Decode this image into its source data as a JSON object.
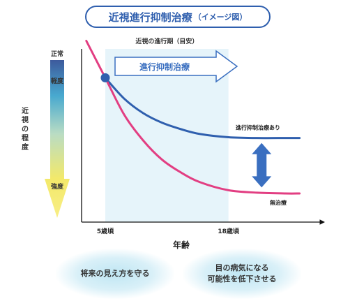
{
  "title": {
    "main": "近視進行抑制治療",
    "sub": "（イメージ図）"
  },
  "chart_data": {
    "type": "line",
    "title": "近視の進行期（目安）",
    "xlabel": "年齢",
    "ylabel": "近視の程度",
    "x_ticks": [
      {
        "label": "5歳頃",
        "value": 5
      },
      {
        "label": "18歳頃",
        "value": 18
      }
    ],
    "xlim": [
      2.5,
      27
    ],
    "ylim": [
      0,
      1
    ],
    "shaded_range": [
      5,
      18
    ],
    "shaded_label": "近視の進行期（目安）",
    "severity_scale": {
      "top": "正常",
      "mid": "軽度",
      "bottom": "強度"
    },
    "arrow_label": "進行抑制治療",
    "series": [
      {
        "name": "進行抑制治療あり",
        "color": "#2f5fae",
        "x": [
          5,
          7,
          9,
          11,
          13,
          15,
          18,
          21,
          24,
          25.5
        ],
        "y": [
          0.82,
          0.69,
          0.6,
          0.54,
          0.5,
          0.47,
          0.45,
          0.445,
          0.445,
          0.445
        ]
      },
      {
        "name": "無治療",
        "color": "#e23e82",
        "x": [
          3,
          5,
          7,
          9,
          11,
          13,
          15,
          18,
          21,
          24,
          25.5
        ],
        "y": [
          1.05,
          0.82,
          0.59,
          0.43,
          0.31,
          0.23,
          0.17,
          0.12,
          0.105,
          0.1,
          0.1
        ]
      }
    ],
    "start_point": {
      "x": 5,
      "y": 0.82
    },
    "difference_arrow": {
      "x": 21.5,
      "y_top": 0.44,
      "y_bottom": 0.12
    }
  },
  "benefits": [
    "将来の見え方を守る",
    "目の病気になる\n可能性を低下させる"
  ],
  "colors": {
    "accent_blue": "#2f5fae",
    "pink": "#e23e82",
    "arrow_blue": "#3a6fc0",
    "shade": "#e6f4fa"
  }
}
